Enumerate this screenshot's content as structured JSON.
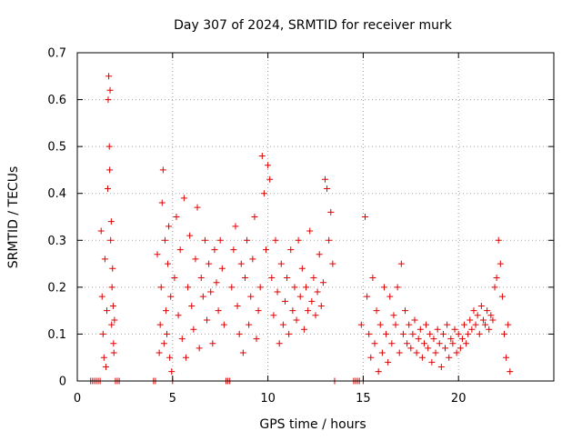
{
  "chart_data": {
    "type": "scatter",
    "title": "Day 307 of 2024, SRMTID for receiver murk",
    "xlabel": "GPS time / hours",
    "ylabel": "SRMTID / TECUs",
    "xlim": [
      0,
      25
    ],
    "ylim": [
      0,
      0.7
    ],
    "xticks": [
      0,
      5,
      10,
      15,
      20
    ],
    "yticks": [
      0,
      0.1,
      0.2,
      0.3,
      0.4,
      0.5,
      0.6,
      0.7
    ],
    "xtick_labels": [
      "0",
      "5",
      "10",
      "15",
      "20"
    ],
    "ytick_labels": [
      "0",
      "0.1",
      "0.2",
      "0.3",
      "0.4",
      "0.5",
      "0.6",
      "0.7"
    ],
    "grid": true,
    "marker": "plus",
    "color": "#e00000",
    "series": [
      {
        "x": [
          0.7,
          0.8,
          0.9,
          1.0,
          1.1,
          1.2,
          1.25,
          1.3,
          1.35,
          1.4,
          1.45,
          1.5,
          1.55,
          1.6,
          1.62,
          1.65,
          1.68,
          1.7,
          1.72,
          1.75,
          1.78,
          1.8,
          1.82,
          1.85,
          1.88,
          1.9,
          1.92,
          1.95,
          2.0,
          2.1,
          2.2,
          4.0,
          4.1,
          4.2,
          4.3,
          4.35,
          4.4,
          4.45,
          4.5,
          4.55,
          4.6,
          4.65,
          4.7,
          4.75,
          4.8,
          4.85,
          4.9,
          4.95,
          5.0,
          5.1,
          5.2,
          5.3,
          5.4,
          5.5,
          5.6,
          5.7,
          5.8,
          5.9,
          6.0,
          6.1,
          6.2,
          6.3,
          6.4,
          6.5,
          6.6,
          6.7,
          6.8,
          6.9,
          7.0,
          7.1,
          7.2,
          7.3,
          7.4,
          7.5,
          7.6,
          7.7,
          7.8,
          7.9,
          8.0,
          8.1,
          8.2,
          8.3,
          8.4,
          8.5,
          8.6,
          8.7,
          8.8,
          8.9,
          9.0,
          9.1,
          9.2,
          9.3,
          9.4,
          9.5,
          9.6,
          9.7,
          9.8,
          9.9,
          10.0,
          10.1,
          10.2,
          10.3,
          10.4,
          10.5,
          10.6,
          10.7,
          10.8,
          10.9,
          11.0,
          11.1,
          11.2,
          11.3,
          11.4,
          11.5,
          11.6,
          11.7,
          11.8,
          11.9,
          12.0,
          12.1,
          12.2,
          12.3,
          12.4,
          12.5,
          12.6,
          12.7,
          12.8,
          12.9,
          13.0,
          13.1,
          13.2,
          13.3,
          13.4,
          13.5,
          14.5,
          14.6,
          14.7,
          14.8,
          14.9,
          15.0,
          15.1,
          15.2,
          15.3,
          15.4,
          15.5,
          15.6,
          15.7,
          15.8,
          15.9,
          16.0,
          16.1,
          16.2,
          16.3,
          16.4,
          16.5,
          16.6,
          16.7,
          16.8,
          16.9,
          17.0,
          17.1,
          17.2,
          17.3,
          17.4,
          17.5,
          17.6,
          17.7,
          17.8,
          17.9,
          18.0,
          18.1,
          18.2,
          18.3,
          18.4,
          18.5,
          18.6,
          18.7,
          18.8,
          18.9,
          19.0,
          19.1,
          19.2,
          19.3,
          19.4,
          19.5,
          19.6,
          19.7,
          19.8,
          19.9,
          20.0,
          20.1,
          20.2,
          20.3,
          20.4,
          20.5,
          20.6,
          20.7,
          20.8,
          20.9,
          21.0,
          21.1,
          21.2,
          21.3,
          21.4,
          21.5,
          21.6,
          21.7,
          21.8,
          21.9,
          22.0,
          22.1,
          22.2,
          22.3,
          22.4,
          22.5,
          22.6,
          22.7
        ],
        "y": [
          0.0,
          0.0,
          0.0,
          0.0,
          0.0,
          0.0,
          0.32,
          0.18,
          0.1,
          0.05,
          0.26,
          0.03,
          0.15,
          0.41,
          0.6,
          0.65,
          0.5,
          0.45,
          0.62,
          0.3,
          0.34,
          0.12,
          0.2,
          0.24,
          0.16,
          0.08,
          0.06,
          0.13,
          0.0,
          0.0,
          0.0,
          0.0,
          0.0,
          0.27,
          0.06,
          0.12,
          0.2,
          0.38,
          0.45,
          0.08,
          0.3,
          0.15,
          0.1,
          0.25,
          0.33,
          0.05,
          0.18,
          0.02,
          0.0,
          0.22,
          0.35,
          0.14,
          0.28,
          0.09,
          0.39,
          0.05,
          0.2,
          0.31,
          0.16,
          0.11,
          0.26,
          0.37,
          0.07,
          0.22,
          0.18,
          0.3,
          0.13,
          0.25,
          0.19,
          0.08,
          0.28,
          0.21,
          0.15,
          0.3,
          0.24,
          0.12,
          0.0,
          0.0,
          0.0,
          0.2,
          0.28,
          0.33,
          0.16,
          0.1,
          0.25,
          0.06,
          0.22,
          0.3,
          0.12,
          0.18,
          0.26,
          0.35,
          0.09,
          0.15,
          0.2,
          0.48,
          0.4,
          0.28,
          0.46,
          0.43,
          0.22,
          0.14,
          0.3,
          0.19,
          0.08,
          0.25,
          0.12,
          0.17,
          0.22,
          0.1,
          0.28,
          0.15,
          0.2,
          0.13,
          0.3,
          0.18,
          0.24,
          0.11,
          0.2,
          0.15,
          0.32,
          0.17,
          0.22,
          0.14,
          0.19,
          0.27,
          0.16,
          0.21,
          0.43,
          0.41,
          0.3,
          0.36,
          0.25,
          0.0,
          0.0,
          0.0,
          0.0,
          0.0,
          0.12,
          0.0,
          0.35,
          0.18,
          0.1,
          0.05,
          0.22,
          0.08,
          0.15,
          0.02,
          0.12,
          0.06,
          0.2,
          0.1,
          0.04,
          0.18,
          0.08,
          0.14,
          0.12,
          0.2,
          0.06,
          0.25,
          0.1,
          0.15,
          0.08,
          0.12,
          0.07,
          0.1,
          0.13,
          0.06,
          0.09,
          0.11,
          0.05,
          0.08,
          0.12,
          0.07,
          0.1,
          0.04,
          0.09,
          0.06,
          0.11,
          0.08,
          0.03,
          0.1,
          0.07,
          0.12,
          0.05,
          0.09,
          0.08,
          0.11,
          0.06,
          0.1,
          0.07,
          0.09,
          0.12,
          0.08,
          0.1,
          0.13,
          0.11,
          0.15,
          0.12,
          0.14,
          0.1,
          0.16,
          0.13,
          0.12,
          0.15,
          0.11,
          0.14,
          0.13,
          0.2,
          0.22,
          0.3,
          0.25,
          0.18,
          0.1,
          0.05,
          0.12,
          0.02
        ]
      }
    ]
  }
}
